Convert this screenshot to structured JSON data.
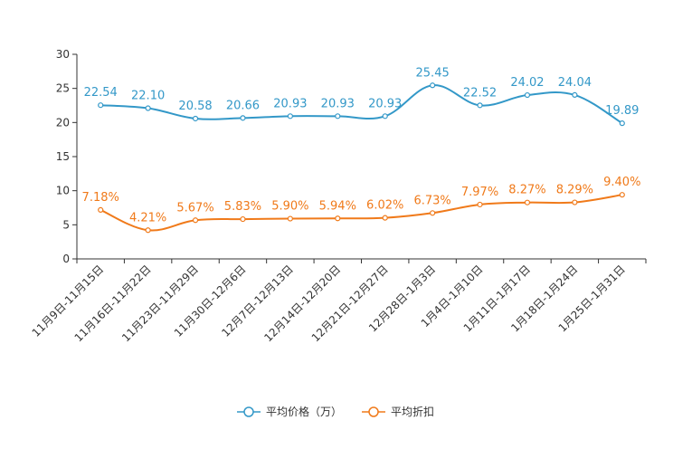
{
  "chart_data": {
    "type": "line",
    "categories": [
      "11月9日-11月15日",
      "11月16日-11月22日",
      "11月23日-11月29日",
      "11月30日-12月6日",
      "12月7日-12月13日",
      "12月14日-12月20日",
      "12月21日-12月27日",
      "12月28日-1月3日",
      "1月4日-1月10日",
      "1月11日-1月17日",
      "1月18日-1月24日",
      "1月25日-1月31日"
    ],
    "ylim": [
      0,
      30
    ],
    "yticks": [
      0,
      5,
      10,
      15,
      20,
      25,
      30
    ],
    "series": [
      {
        "name": "平均价格（万）",
        "color": "#3398c8",
        "values": [
          22.54,
          22.1,
          20.58,
          20.66,
          20.93,
          20.93,
          20.93,
          25.45,
          22.52,
          24.02,
          24.04,
          19.89
        ],
        "labels": [
          "22.54",
          "22.10",
          "20.58",
          "20.66",
          "20.93",
          "20.93",
          "20.93",
          "25.45",
          "22.52",
          "24.02",
          "24.04",
          "19.89"
        ]
      },
      {
        "name": "平均折扣",
        "color": "#f07a1a",
        "values": [
          7.18,
          4.21,
          5.67,
          5.83,
          5.9,
          5.94,
          6.02,
          6.73,
          7.97,
          8.27,
          8.29,
          9.4
        ],
        "labels": [
          "7.18%",
          "4.21%",
          "5.67%",
          "5.83%",
          "5.90%",
          "5.94%",
          "6.02%",
          "6.73%",
          "7.97%",
          "8.27%",
          "8.29%",
          "9.40%"
        ]
      }
    ],
    "legend_position": "bottom-center",
    "grid": false
  }
}
